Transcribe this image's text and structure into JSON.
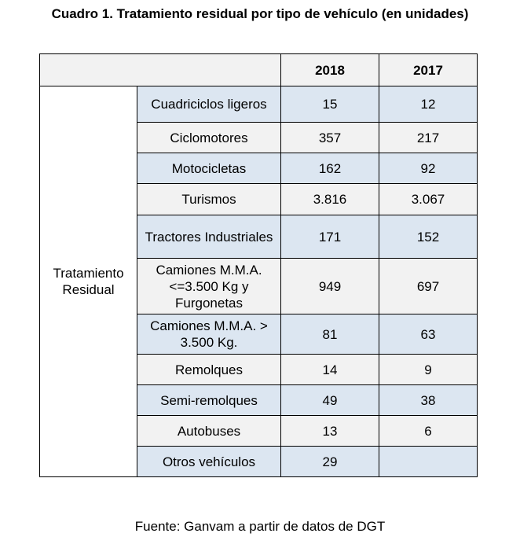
{
  "title": "Cuadro 1. Tratamiento residual por tipo de vehículo (en unidades)",
  "columns": [
    "2018",
    "2017"
  ],
  "group_label": "Tratamiento Residual",
  "rows": [
    {
      "label": "Cuadriciclos ligeros",
      "v2018": "15",
      "v2017": "12"
    },
    {
      "label": "Ciclomotores",
      "v2018": "357",
      "v2017": "217"
    },
    {
      "label": "Motocicletas",
      "v2018": "162",
      "v2017": "92"
    },
    {
      "label": "Turismos",
      "v2018": "3.816",
      "v2017": "3.067"
    },
    {
      "label": "Tractores Industriales",
      "v2018": "171",
      "v2017": "152"
    },
    {
      "label": "Camiones M.M.A. <=3.500 Kg y Furgonetas",
      "v2018": "949",
      "v2017": "697"
    },
    {
      "label": "Camiones M.M.A. > 3.500 Kg.",
      "v2018": "81",
      "v2017": "63"
    },
    {
      "label": "Remolques",
      "v2018": "14",
      "v2017": "9"
    },
    {
      "label": "Semi-remolques",
      "v2018": "49",
      "v2017": "38"
    },
    {
      "label": "Autobuses",
      "v2018": "13",
      "v2017": "6"
    },
    {
      "label": "Otros vehículos",
      "v2018": "29",
      "v2017": ""
    }
  ],
  "source": "Fuente: Ganvam a partir de datos de DGT"
}
